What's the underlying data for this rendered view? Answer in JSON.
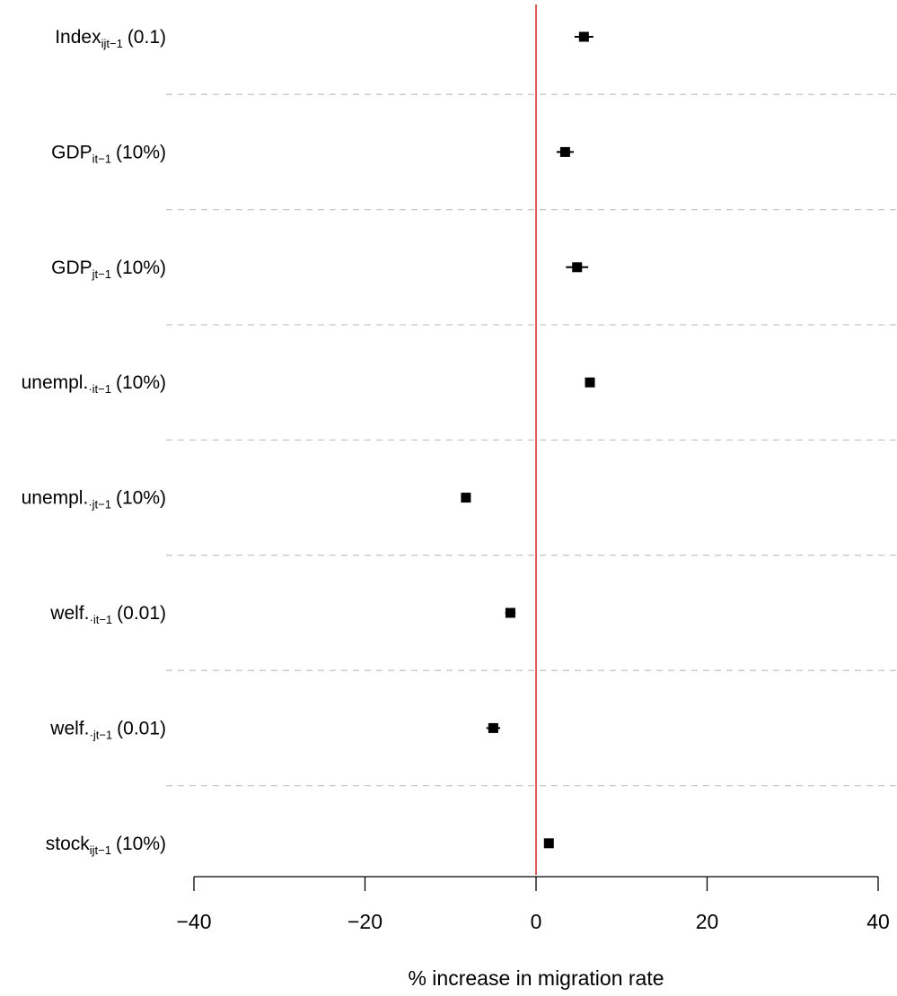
{
  "chart_data": {
    "type": "coefplot",
    "xlabel": "% increase in migration rate",
    "categories": [
      {
        "main": "Index",
        "sub": "ijt−1",
        "scale": "(0.1)"
      },
      {
        "main": "GDP",
        "sub": "it−1",
        "scale": "(10%)"
      },
      {
        "main": "GDP",
        "sub": "jt−1",
        "scale": "(10%)"
      },
      {
        "main": "unempl.",
        "sub": "·it−1",
        "scale": "(10%)"
      },
      {
        "main": "unempl.",
        "sub": "·jt−1",
        "scale": "(10%)"
      },
      {
        "main": "welf.",
        "sub": "·it−1",
        "scale": "(0.01)"
      },
      {
        "main": "welf.",
        "sub": "·jt−1",
        "scale": "(0.01)"
      },
      {
        "main": "stock",
        "sub": "ijt−1",
        "scale": "(10%)"
      }
    ],
    "values": [
      5.6,
      3.4,
      4.8,
      6.3,
      -8.2,
      -3.0,
      -5.0,
      1.5
    ],
    "errors": [
      1.1,
      1.0,
      1.3,
      0.3,
      0.3,
      0.6,
      0.8,
      0.2
    ],
    "color": "#000000",
    "xlim": [
      -40,
      40
    ],
    "xticks": [
      {
        "value": -40,
        "label": "−40"
      },
      {
        "value": -20,
        "label": "−20"
      },
      0,
      20,
      40
    ],
    "reference_line": {
      "value": 0,
      "color": "#d62728"
    },
    "separators": true
  }
}
